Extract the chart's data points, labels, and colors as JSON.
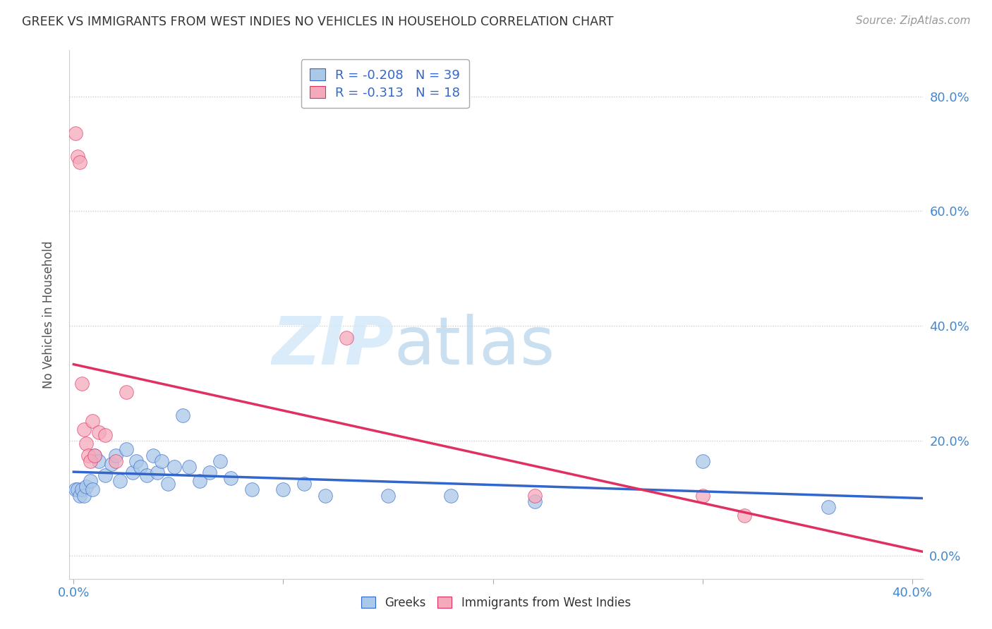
{
  "title": "GREEK VS IMMIGRANTS FROM WEST INDIES NO VEHICLES IN HOUSEHOLD CORRELATION CHART",
  "source": "Source: ZipAtlas.com",
  "ylabel": "No Vehicles in Household",
  "yticks": [
    "0.0%",
    "20.0%",
    "40.0%",
    "60.0%",
    "80.0%"
  ],
  "ytick_vals": [
    0.0,
    0.2,
    0.4,
    0.6,
    0.8
  ],
  "xlim": [
    -0.002,
    0.405
  ],
  "ylim": [
    -0.04,
    0.88
  ],
  "legend_r_blue": "R = -0.208",
  "legend_n_blue": "N = 39",
  "legend_r_pink": "R = -0.313",
  "legend_n_pink": "N = 18",
  "blue_color": "#aac8e8",
  "pink_color": "#f5aabc",
  "line_blue": "#3366cc",
  "line_pink": "#e03060",
  "watermark_zip": "ZIP",
  "watermark_atlas": "atlas",
  "greeks_x": [
    0.001,
    0.002,
    0.003,
    0.004,
    0.005,
    0.006,
    0.008,
    0.009,
    0.01,
    0.012,
    0.015,
    0.018,
    0.02,
    0.022,
    0.025,
    0.028,
    0.03,
    0.032,
    0.035,
    0.038,
    0.04,
    0.042,
    0.045,
    0.048,
    0.052,
    0.055,
    0.06,
    0.065,
    0.07,
    0.075,
    0.085,
    0.1,
    0.11,
    0.12,
    0.15,
    0.18,
    0.22,
    0.3,
    0.36
  ],
  "greeks_y": [
    0.115,
    0.115,
    0.105,
    0.115,
    0.105,
    0.12,
    0.13,
    0.115,
    0.175,
    0.165,
    0.14,
    0.16,
    0.175,
    0.13,
    0.185,
    0.145,
    0.165,
    0.155,
    0.14,
    0.175,
    0.145,
    0.165,
    0.125,
    0.155,
    0.245,
    0.155,
    0.13,
    0.145,
    0.165,
    0.135,
    0.115,
    0.115,
    0.125,
    0.105,
    0.105,
    0.105,
    0.095,
    0.165,
    0.085
  ],
  "westindies_x": [
    0.001,
    0.002,
    0.003,
    0.004,
    0.005,
    0.006,
    0.007,
    0.008,
    0.009,
    0.01,
    0.012,
    0.015,
    0.02,
    0.025,
    0.13,
    0.22,
    0.3,
    0.32
  ],
  "westindies_y": [
    0.735,
    0.695,
    0.685,
    0.3,
    0.22,
    0.195,
    0.175,
    0.165,
    0.235,
    0.175,
    0.215,
    0.21,
    0.165,
    0.285,
    0.38,
    0.105,
    0.105,
    0.07
  ],
  "background_color": "#ffffff",
  "grid_color": "#c8c8c8"
}
